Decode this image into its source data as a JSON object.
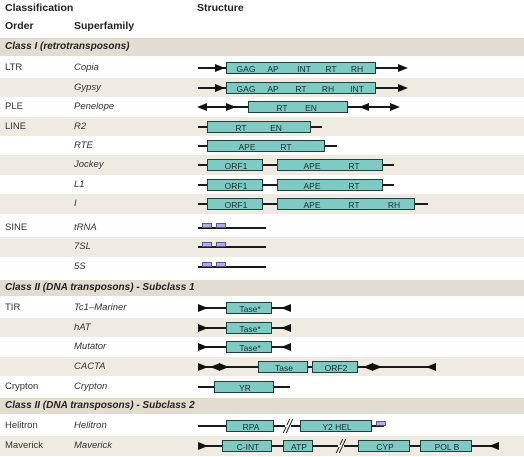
{
  "headers": {
    "classification": "Classification",
    "structure": "Structure",
    "order": "Order",
    "superfamily": "Superfamily"
  },
  "classes": {
    "class1": "Class I (retrotransposons)",
    "class2sub1": "Class II (DNA transposons) - Subclass 1",
    "class2sub2": "Class II (DNA transposons) - Subclass 2"
  },
  "rows": [
    {
      "order": "LTR",
      "superfamily": "Copia",
      "domains": [
        "GAG",
        "AP",
        "INT",
        "RT",
        "RH"
      ]
    },
    {
      "order": "",
      "superfamily": "Gypsy",
      "domains": [
        "GAG",
        "AP",
        "RT",
        "RH",
        "INT"
      ]
    },
    {
      "order": "PLE",
      "superfamily": "Penelope",
      "domains": [
        "RT",
        "EN"
      ]
    },
    {
      "order": "LINE",
      "superfamily": "R2",
      "domains": [
        "RT",
        "EN"
      ]
    },
    {
      "order": "",
      "superfamily": "RTE",
      "domains": [
        "APE",
        "RT"
      ]
    },
    {
      "order": "",
      "superfamily": "Jockey",
      "domains": [
        "ORF1",
        "APE",
        "RT"
      ]
    },
    {
      "order": "",
      "superfamily": "L1",
      "domains": [
        "ORF1",
        "APE",
        "RT"
      ]
    },
    {
      "order": "",
      "superfamily": "I",
      "domains": [
        "ORF1",
        "APE",
        "RT",
        "RH"
      ]
    },
    {
      "order": "SINE",
      "superfamily": "tRNA",
      "domains": []
    },
    {
      "order": "",
      "superfamily": "7SL",
      "domains": []
    },
    {
      "order": "",
      "superfamily": "5S",
      "domains": []
    },
    {
      "order": "TIR",
      "superfamily": "Tc1–Mariner",
      "domains": [
        "Tase*"
      ]
    },
    {
      "order": "",
      "superfamily": "hAT",
      "domains": [
        "Tase*"
      ]
    },
    {
      "order": "",
      "superfamily": "Mutator",
      "domains": [
        "Tase*"
      ]
    },
    {
      "order": "",
      "superfamily": "CACTA",
      "domains": [
        "Tase",
        "ORF2"
      ]
    },
    {
      "order": "Crypton",
      "superfamily": "Crypton",
      "domains": [
        "YR"
      ]
    },
    {
      "order": "Helitron",
      "superfamily": "Helitron",
      "domains": [
        "RPA",
        "Y2 HEL"
      ]
    },
    {
      "order": "Maverick",
      "superfamily": "Maverick",
      "domains": [
        "C-INT",
        "ATP",
        "CYP",
        "POL B"
      ]
    }
  ]
}
